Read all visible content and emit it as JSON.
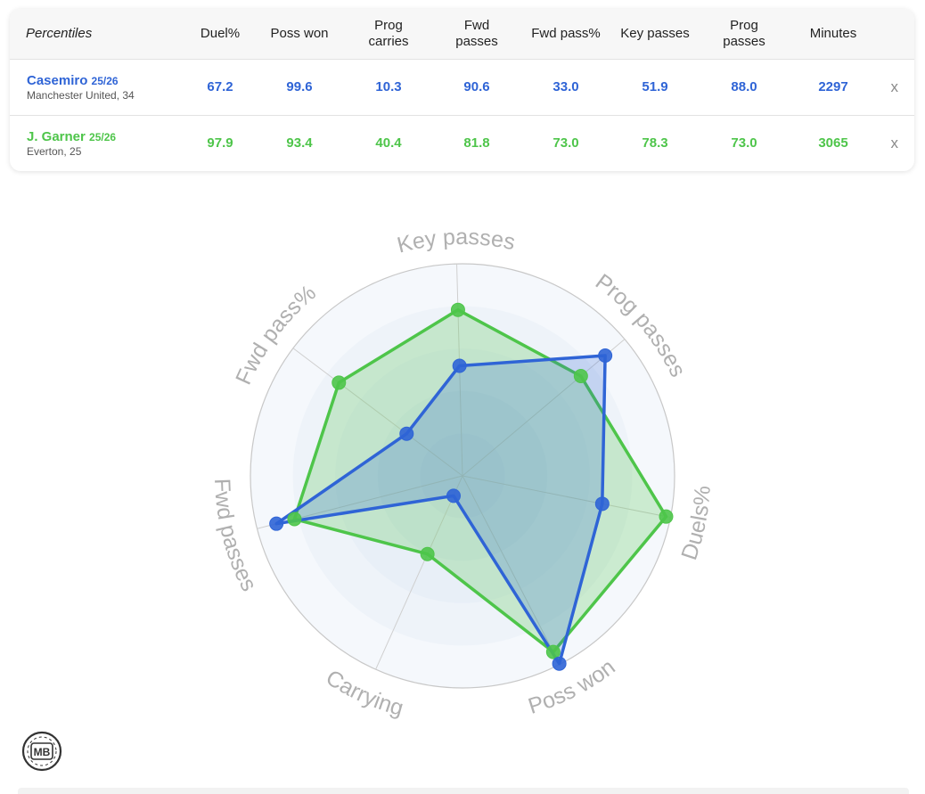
{
  "table": {
    "header_label": "Percentiles",
    "columns": [
      "Duel%",
      "Poss won",
      "Prog\ncarries",
      "Fwd\npasses",
      "Fwd pass%",
      "Key passes",
      "Prog\npasses",
      "Minutes"
    ],
    "players": [
      {
        "name": "Casemiro",
        "season": "25/26",
        "team": "Manchester United, 34",
        "values": [
          "67.2",
          "99.6",
          "10.3",
          "90.6",
          "33.0",
          "51.9",
          "88.0",
          "2297"
        ],
        "remove_label": "x",
        "color": "#2f64d6"
      },
      {
        "name": "J. Garner",
        "season": "25/26",
        "team": "Everton, 25",
        "values": [
          "97.9",
          "93.4",
          "40.4",
          "81.8",
          "73.0",
          "78.3",
          "73.0",
          "3065"
        ],
        "remove_label": "x",
        "color": "#4ec54a"
      }
    ]
  },
  "chart_data": {
    "type": "radar",
    "axes": [
      "Duels%",
      "Poss won",
      "Carrying",
      "Fwd passes",
      "Fwd pass%",
      "Key passes",
      "Prog passes"
    ],
    "range": [
      0,
      100
    ],
    "series": [
      {
        "name": "Casemiro",
        "color": "#2f64d6",
        "values": [
          67.2,
          99.6,
          10.3,
          90.6,
          33.0,
          51.9,
          88.0
        ]
      },
      {
        "name": "J. Garner",
        "color": "#4ec54a",
        "values": [
          97.9,
          93.4,
          40.4,
          81.8,
          73.0,
          78.3,
          73.0
        ]
      }
    ],
    "grid": true
  },
  "logo": {
    "text": "MB"
  }
}
